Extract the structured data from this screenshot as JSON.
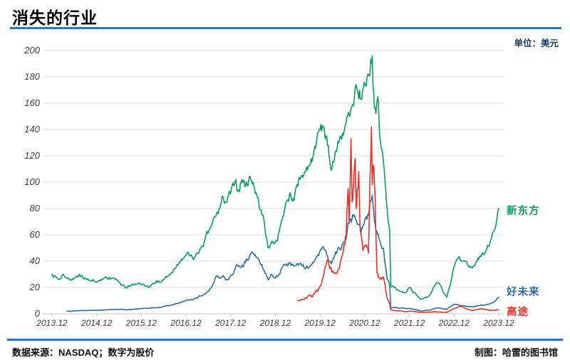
{
  "page": {
    "title": "消失的行业",
    "unit_label": "单位：美元",
    "footer_left": "数据来源：NASDAQ；数字为股价",
    "footer_right": "制图：哈雷的图书馆"
  },
  "colors": {
    "accent_rule": "#2e75b6",
    "unit_text": "#17375e",
    "grid": "#dcdcdc",
    "axis_line": "#c4c4c4",
    "axis_text": "#3f3f3f",
    "edu_green": "#0a9c66",
    "tal_blue": "#2e6da4",
    "gotu_red": "#e5332a"
  },
  "chart_data": {
    "type": "line",
    "title": "消失的行业",
    "unit": "美元",
    "grid": true,
    "legend_position": "inline-right-of-lines",
    "y_axis": {
      "min": 0,
      "max": 200,
      "step": 20,
      "ticks": [
        0,
        20,
        40,
        60,
        80,
        100,
        120,
        140,
        160,
        180,
        200
      ]
    },
    "x_axis": {
      "tick_labels": [
        "2013.12",
        "2014.12",
        "2015.12",
        "2016.12",
        "2017.12",
        "2018.12",
        "2019.12",
        "2020.12",
        "2021.12",
        "2022.12",
        "2023.12"
      ],
      "tick_months": [
        0,
        12,
        24,
        36,
        48,
        60,
        72,
        84,
        96,
        108,
        120
      ],
      "t_unit": "months since 2013-12"
    },
    "series": [
      {
        "name": "新东方",
        "color": "#0a9c66",
        "points": [
          [
            0,
            30
          ],
          [
            1,
            28
          ],
          [
            2,
            26
          ],
          [
            3,
            30
          ],
          [
            4,
            27
          ],
          [
            5,
            26
          ],
          [
            6,
            27
          ],
          [
            7,
            28
          ],
          [
            8,
            29
          ],
          [
            9,
            27
          ],
          [
            10,
            25
          ],
          [
            11,
            26
          ],
          [
            12,
            24
          ],
          [
            13,
            25
          ],
          [
            14,
            27
          ],
          [
            15,
            26
          ],
          [
            16,
            27
          ],
          [
            17,
            26
          ],
          [
            18,
            24
          ],
          [
            19,
            22
          ],
          [
            20,
            19.5
          ],
          [
            21,
            21
          ],
          [
            22,
            22
          ],
          [
            23,
            23
          ],
          [
            24,
            22
          ],
          [
            25,
            21
          ],
          [
            26,
            20
          ],
          [
            27,
            23
          ],
          [
            28,
            25
          ],
          [
            29,
            24
          ],
          [
            30,
            26
          ],
          [
            31,
            28
          ],
          [
            32,
            31
          ],
          [
            33,
            34
          ],
          [
            34,
            38
          ],
          [
            35,
            41
          ],
          [
            36,
            45
          ],
          [
            37,
            44
          ],
          [
            38,
            41
          ],
          [
            39,
            46
          ],
          [
            40,
            50
          ],
          [
            41,
            55
          ],
          [
            42,
            62
          ],
          [
            43,
            68
          ],
          [
            44,
            74
          ],
          [
            45,
            80
          ],
          [
            46,
            88
          ],
          [
            47,
            85
          ],
          [
            48,
            92
          ],
          [
            49,
            98
          ],
          [
            50,
            94
          ],
          [
            51,
            102
          ],
          [
            52,
            97
          ],
          [
            53,
            104
          ],
          [
            54,
            100
          ],
          [
            55,
            90
          ],
          [
            56,
            79
          ],
          [
            57,
            70
          ],
          [
            58,
            50
          ],
          [
            59,
            55
          ],
          [
            60,
            54
          ],
          [
            61,
            62
          ],
          [
            62,
            74
          ],
          [
            63,
            85
          ],
          [
            64,
            92
          ],
          [
            65,
            86
          ],
          [
            66,
            97
          ],
          [
            67,
            105
          ],
          [
            68,
            108
          ],
          [
            69,
            112
          ],
          [
            70,
            118
          ],
          [
            71,
            130
          ],
          [
            72,
            140
          ],
          [
            73,
            142
          ],
          [
            74,
            128
          ],
          [
            75,
            109
          ],
          [
            76,
            122
          ],
          [
            77,
            130
          ],
          [
            78,
            137
          ],
          [
            79,
            145
          ],
          [
            80,
            150
          ],
          [
            81,
            158
          ],
          [
            82,
            170
          ],
          [
            83,
            163
          ],
          [
            84,
            175
          ],
          [
            85,
            182
          ],
          [
            86,
            196
          ],
          [
            86.4,
            168
          ],
          [
            87,
            152
          ],
          [
            87.5,
            165
          ],
          [
            88,
            136
          ],
          [
            89,
            116
          ],
          [
            90,
            80
          ],
          [
            90.7,
            63
          ],
          [
            91,
            21
          ],
          [
            92,
            20
          ],
          [
            93,
            18
          ],
          [
            94,
            17
          ],
          [
            95,
            16
          ],
          [
            96,
            20
          ],
          [
            97,
            16
          ],
          [
            98,
            14
          ],
          [
            99,
            11
          ],
          [
            100,
            12
          ],
          [
            101,
            13
          ],
          [
            102,
            17
          ],
          [
            103,
            22
          ],
          [
            104,
            23
          ],
          [
            105,
            17
          ],
          [
            106,
            12.5
          ],
          [
            107,
            22
          ],
          [
            108,
            36
          ],
          [
            109,
            42
          ],
          [
            110,
            40
          ],
          [
            111,
            40
          ],
          [
            112,
            36
          ],
          [
            113,
            35
          ],
          [
            114,
            40
          ],
          [
            115,
            44
          ],
          [
            116,
            45
          ],
          [
            117,
            52
          ],
          [
            118,
            57
          ],
          [
            119,
            65
          ],
          [
            120,
            80
          ]
        ]
      },
      {
        "name": "好未来",
        "color": "#2e6da4",
        "points": [
          [
            4,
            2.0
          ],
          [
            6,
            2.2
          ],
          [
            8,
            2.5
          ],
          [
            10,
            2.6
          ],
          [
            12,
            2.7
          ],
          [
            14,
            2.9
          ],
          [
            16,
            3.2
          ],
          [
            18,
            3.3
          ],
          [
            20,
            3.0
          ],
          [
            22,
            3.5
          ],
          [
            24,
            4.0
          ],
          [
            26,
            4.2
          ],
          [
            28,
            4.6
          ],
          [
            30,
            5.5
          ],
          [
            32,
            6.5
          ],
          [
            34,
            8
          ],
          [
            36,
            10
          ],
          [
            37,
            10.5
          ],
          [
            38,
            11
          ],
          [
            39,
            12
          ],
          [
            40,
            13.5
          ],
          [
            41,
            15
          ],
          [
            42,
            17
          ],
          [
            43,
            21
          ],
          [
            44,
            28
          ],
          [
            45,
            27
          ],
          [
            46,
            29
          ],
          [
            47,
            26
          ],
          [
            48,
            29
          ],
          [
            49,
            33
          ],
          [
            50,
            36
          ],
          [
            51,
            37
          ],
          [
            52,
            39
          ],
          [
            53,
            43
          ],
          [
            54,
            46
          ],
          [
            55,
            43
          ],
          [
            56,
            38
          ],
          [
            57,
            33
          ],
          [
            58,
            26
          ],
          [
            59,
            30
          ],
          [
            60,
            27
          ],
          [
            61,
            30
          ],
          [
            62,
            36
          ],
          [
            63,
            38
          ],
          [
            64,
            39
          ],
          [
            65,
            36
          ],
          [
            66,
            38
          ],
          [
            67,
            37
          ],
          [
            68,
            34
          ],
          [
            69,
            35
          ],
          [
            70,
            39
          ],
          [
            71,
            43
          ],
          [
            72,
            48
          ],
          [
            73,
            50
          ],
          [
            74,
            44
          ],
          [
            75,
            38
          ],
          [
            76,
            45
          ],
          [
            77,
            50
          ],
          [
            78,
            53
          ],
          [
            79,
            57
          ],
          [
            80,
            72
          ],
          [
            81,
            74
          ],
          [
            82,
            68
          ],
          [
            83,
            62
          ],
          [
            84,
            71
          ],
          [
            85,
            75
          ],
          [
            86,
            90
          ],
          [
            87,
            63
          ],
          [
            88,
            56
          ],
          [
            89,
            50
          ],
          [
            90,
            27
          ],
          [
            90.7,
            22
          ],
          [
            91,
            4.5
          ],
          [
            92,
            4.8
          ],
          [
            93,
            4.3
          ],
          [
            94,
            4.4
          ],
          [
            95,
            4.0
          ],
          [
            96,
            4.1
          ],
          [
            97,
            3.6
          ],
          [
            98,
            3.0
          ],
          [
            99,
            2.1
          ],
          [
            100,
            2.4
          ],
          [
            101,
            2.6
          ],
          [
            102,
            3.2
          ],
          [
            103,
            4.3
          ],
          [
            104,
            4.5
          ],
          [
            105,
            3.8
          ],
          [
            106,
            3.2
          ],
          [
            107,
            5.5
          ],
          [
            108,
            7.2
          ],
          [
            109,
            6.8
          ],
          [
            110,
            6.0
          ],
          [
            111,
            5.8
          ],
          [
            112,
            5.5
          ],
          [
            113,
            5.2
          ],
          [
            114,
            6.0
          ],
          [
            115,
            6.5
          ],
          [
            116,
            6.3
          ],
          [
            117,
            7.2
          ],
          [
            118,
            8.2
          ],
          [
            119,
            9.5
          ],
          [
            120,
            12.4
          ]
        ]
      },
      {
        "name": "高途",
        "color": "#e5332a",
        "points": [
          [
            66,
            10.3
          ],
          [
            67,
            11
          ],
          [
            68,
            12
          ],
          [
            69,
            14
          ],
          [
            70,
            13
          ],
          [
            71,
            18
          ],
          [
            72,
            21
          ],
          [
            73,
            30
          ],
          [
            74,
            41
          ],
          [
            75,
            34
          ],
          [
            76,
            31
          ],
          [
            77,
            34
          ],
          [
            78,
            45
          ],
          [
            79,
            60
          ],
          [
            79.5,
            95
          ],
          [
            79.8,
            70
          ],
          [
            80,
            88
          ],
          [
            80.3,
            133
          ],
          [
            80.6,
            85
          ],
          [
            81,
            98
          ],
          [
            81.4,
            118
          ],
          [
            81.7,
            80
          ],
          [
            82,
            95
          ],
          [
            82.4,
            108
          ],
          [
            82.7,
            70
          ],
          [
            83,
            60
          ],
          [
            83.5,
            48
          ],
          [
            84,
            52
          ],
          [
            85,
            46
          ],
          [
            85.8,
            142
          ],
          [
            86,
            98
          ],
          [
            86.3,
            113
          ],
          [
            86.6,
            100
          ],
          [
            87,
            60
          ],
          [
            87.3,
            31
          ],
          [
            88,
            27
          ],
          [
            89,
            28
          ],
          [
            90,
            12
          ],
          [
            90.7,
            8
          ],
          [
            91,
            3
          ],
          [
            92,
            2.6
          ],
          [
            93,
            2.2
          ],
          [
            94,
            2.0
          ],
          [
            95,
            1.7
          ],
          [
            96,
            1.9
          ],
          [
            97,
            1.8
          ],
          [
            98,
            1.5
          ],
          [
            99,
            1.0
          ],
          [
            100,
            1.1
          ],
          [
            101,
            1.2
          ],
          [
            102,
            1.3
          ],
          [
            103,
            1.5
          ],
          [
            104,
            1.4
          ],
          [
            105,
            1.1
          ],
          [
            106,
            1.0
          ],
          [
            107,
            2.5
          ],
          [
            108,
            4.0
          ],
          [
            109,
            5.0
          ],
          [
            110,
            5.5
          ],
          [
            111,
            4.2
          ],
          [
            112,
            3.0
          ],
          [
            113,
            2.6
          ],
          [
            114,
            3.3
          ],
          [
            115,
            3.8
          ],
          [
            116,
            3.5
          ],
          [
            117,
            3.0
          ],
          [
            118,
            2.8
          ],
          [
            119,
            2.6
          ],
          [
            120,
            3.0
          ]
        ]
      }
    ]
  }
}
